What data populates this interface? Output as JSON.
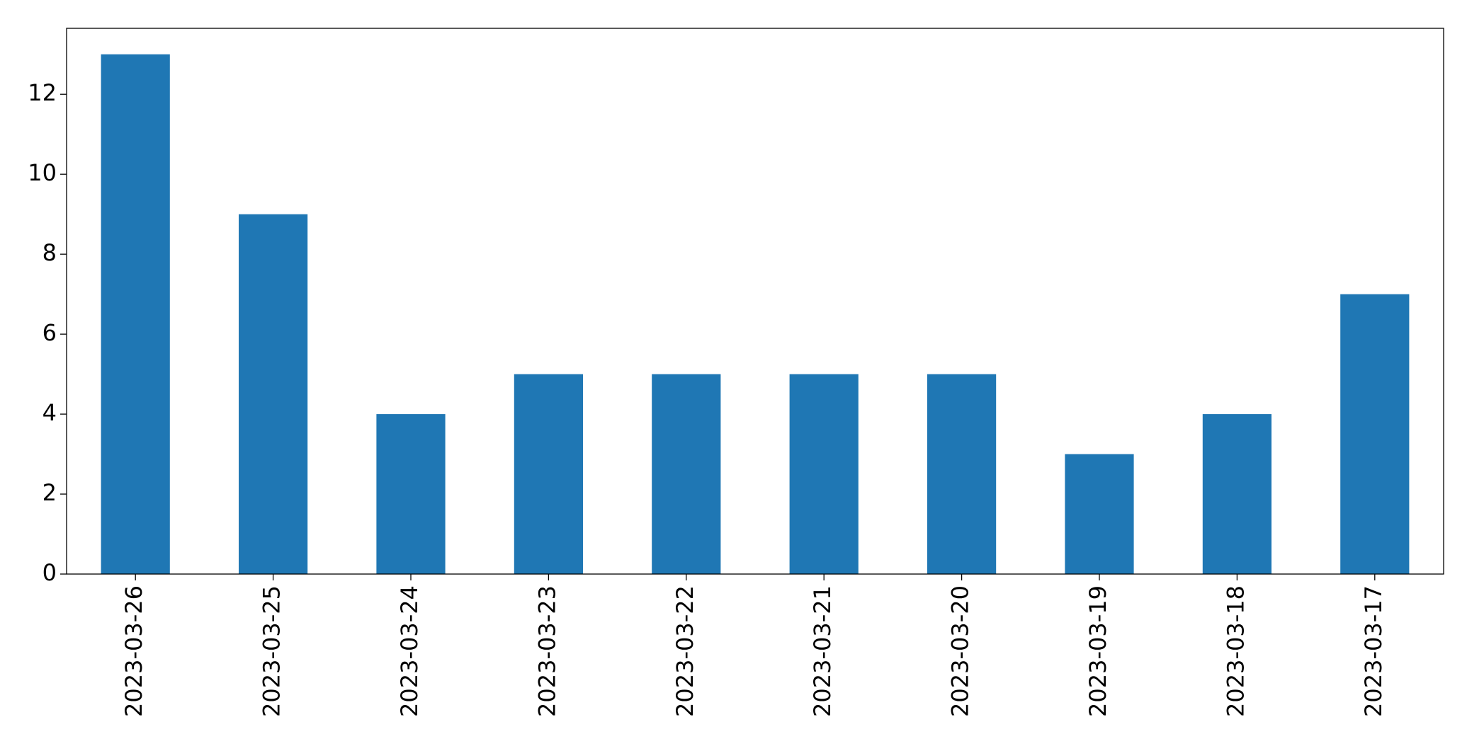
{
  "chart_data": {
    "type": "bar",
    "categories": [
      "2023-03-26",
      "2023-03-25",
      "2023-03-24",
      "2023-03-23",
      "2023-03-22",
      "2023-03-21",
      "2023-03-20",
      "2023-03-19",
      "2023-03-18",
      "2023-03-17"
    ],
    "values": [
      13,
      9,
      4,
      5,
      5,
      5,
      5,
      3,
      4,
      7
    ],
    "color": "#1f77b4",
    "ylim": [
      0,
      13.65
    ],
    "yticks": [
      0,
      2,
      4,
      6,
      8,
      10,
      12
    ],
    "grid": false
  }
}
